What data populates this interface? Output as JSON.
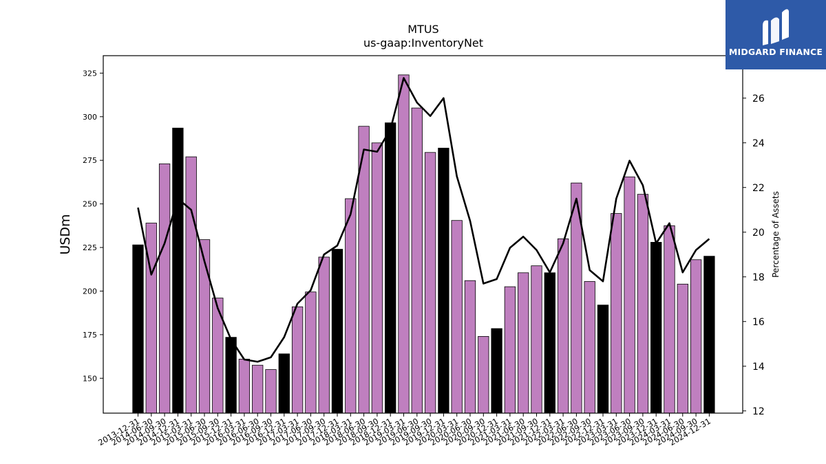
{
  "chart_data": {
    "type": "bar",
    "title": "MTUS",
    "subtitle": "us-gaap:InventoryNet",
    "ylabel": "USDm",
    "y2label": "Percentage of Assets",
    "ylim": [
      130,
      335
    ],
    "y2lim": [
      11.9,
      27.9
    ],
    "yticks": [
      150,
      175,
      200,
      225,
      250,
      275,
      300,
      325
    ],
    "y2ticks": [
      12,
      14,
      16,
      18,
      20,
      22,
      24,
      26
    ],
    "colors": {
      "bar": "#bf7fbf",
      "bar_highlight": "#000000",
      "line": "#000000"
    },
    "categories": [
      "2013-12-31",
      "2014-06-30",
      "2014-09-30",
      "2014-12-31",
      "2015-03-31",
      "2015-06-30",
      "2015-09-30",
      "2015-12-31",
      "2016-03-31",
      "2016-06-30",
      "2016-09-30",
      "2016-12-31",
      "2017-03-31",
      "2017-06-30",
      "2017-09-30",
      "2017-12-31",
      "2018-03-31",
      "2018-06-30",
      "2018-09-30",
      "2018-12-31",
      "2019-03-31",
      "2019-06-30",
      "2019-09-30",
      "2019-12-31",
      "2020-03-31",
      "2020-06-30",
      "2020-09-30",
      "2020-12-31",
      "2021-03-31",
      "2021-06-30",
      "2021-09-30",
      "2021-12-31",
      "2022-03-31",
      "2022-06-30",
      "2022-09-30",
      "2022-12-31",
      "2023-03-31",
      "2023-06-30",
      "2023-09-30",
      "2023-12-31",
      "2024-03-31",
      "2024-06-30",
      "2024-09-30",
      "2024-12-31"
    ],
    "series": [
      {
        "kind": "bar",
        "values": [
          226.5,
          239,
          273,
          293.5,
          277,
          229.5,
          196,
          173.5,
          161,
          157.5,
          155,
          164,
          191,
          199.5,
          219.5,
          224,
          253,
          294.5,
          285,
          296.5,
          324,
          305,
          279.5,
          282,
          240.5,
          206,
          174,
          178.5,
          202.5,
          210.5,
          214.5,
          210.5,
          230,
          262,
          205.5,
          192,
          244.5,
          265.5,
          255.5,
          228,
          237.5,
          204,
          218,
          220
        ],
        "highlight": [
          true,
          false,
          false,
          true,
          false,
          false,
          false,
          true,
          false,
          false,
          false,
          true,
          false,
          false,
          false,
          true,
          false,
          false,
          false,
          true,
          false,
          false,
          false,
          true,
          false,
          false,
          false,
          true,
          false,
          false,
          false,
          true,
          false,
          false,
          false,
          true,
          false,
          false,
          false,
          true,
          false,
          false,
          false,
          true
        ]
      },
      {
        "kind": "line",
        "axis": "right",
        "values": [
          21.1,
          18.1,
          19.5,
          21.5,
          21,
          18.7,
          16.6,
          15.2,
          14.3,
          14.2,
          14.4,
          15.3,
          16.8,
          17.4,
          19,
          19.4,
          20.8,
          23.7,
          23.6,
          24.6,
          26.9,
          25.8,
          25.2,
          26,
          22.5,
          20.5,
          17.7,
          17.9,
          19.3,
          19.8,
          19.2,
          18.2,
          19.5,
          21.5,
          18.3,
          17.8,
          21.5,
          23.2,
          22.1,
          19.5,
          20.4,
          18.2,
          19.2,
          19.7
        ]
      }
    ]
  },
  "logo": {
    "text": "MIDGARD FINANCE"
  }
}
